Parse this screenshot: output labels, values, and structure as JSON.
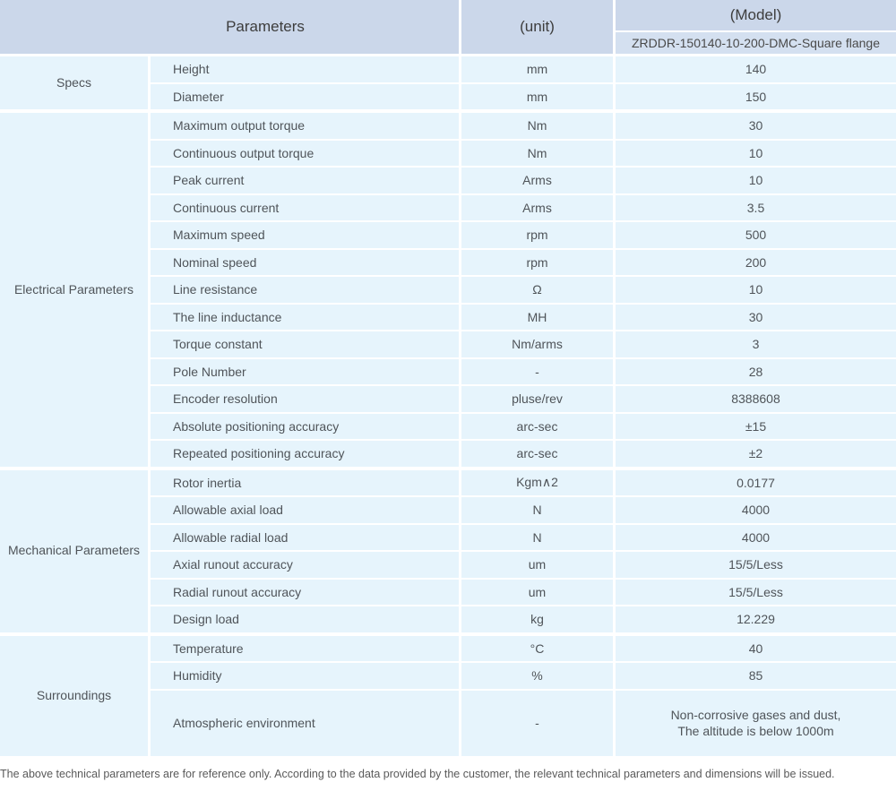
{
  "header": {
    "parameters_label": "Parameters",
    "unit_label": "(unit)",
    "model_label": "(Model)",
    "model_value": "ZRDDR-150140-10-200-DMC-Square flange"
  },
  "colors": {
    "header_bg": "#cbd7ea",
    "subheader_bg": "#d4e0f0",
    "cell_bg": "#e6f4fc",
    "separator": "#ffffff",
    "text": "#4f5459"
  },
  "sections": [
    {
      "category": "Specs",
      "rows": [
        {
          "param": "Height",
          "unit": "mm",
          "value": "140"
        },
        {
          "param": "Diameter",
          "unit": "mm",
          "value": "150"
        }
      ]
    },
    {
      "category": "Electrical Parameters",
      "rows": [
        {
          "param": "Maximum output torque",
          "unit": "Nm",
          "value": "30"
        },
        {
          "param": "Continuous output torque",
          "unit": "Nm",
          "value": "10"
        },
        {
          "param": "Peak current",
          "unit": "Arms",
          "value": "10"
        },
        {
          "param": "Continuous current",
          "unit": "Arms",
          "value": "3.5"
        },
        {
          "param": "Maximum speed",
          "unit": "rpm",
          "value": "500"
        },
        {
          "param": "Nominal speed",
          "unit": "rpm",
          "value": "200"
        },
        {
          "param": "Line resistance",
          "unit": "Ω",
          "value": "10"
        },
        {
          "param": "The line inductance",
          "unit": "MH",
          "value": "30"
        },
        {
          "param": "Torque constant",
          "unit": "Nm/arms",
          "value": "3"
        },
        {
          "param": "Pole Number",
          "unit": "-",
          "value": "28"
        },
        {
          "param": "Encoder resolution",
          "unit": "pluse/rev",
          "value": "8388608"
        },
        {
          "param": "Absolute positioning accuracy",
          "unit": "arc-sec",
          "value": "±15"
        },
        {
          "param": "Repeated positioning accuracy",
          "unit": "arc-sec",
          "value": "±2"
        }
      ]
    },
    {
      "category": "Mechanical Parameters",
      "rows": [
        {
          "param": "Rotor inertia",
          "unit": "Kgm∧2",
          "value": "0.0177"
        },
        {
          "param": "Allowable axial load",
          "unit": "N",
          "value": "4000"
        },
        {
          "param": "Allowable radial load",
          "unit": "N",
          "value": "4000"
        },
        {
          "param": "Axial runout accuracy",
          "unit": "um",
          "value": "15/5/Less"
        },
        {
          "param": "Radial runout accuracy",
          "unit": "um",
          "value": "15/5/Less"
        },
        {
          "param": "Design load",
          "unit": "kg",
          "value": "12.229"
        }
      ]
    },
    {
      "category": "Surroundings",
      "rows": [
        {
          "param": "Temperature",
          "unit": "°C",
          "value": "40"
        },
        {
          "param": "Humidity",
          "unit": "%",
          "value": "85"
        },
        {
          "param": "Atmospheric environment",
          "unit": "-",
          "value": "Non-corrosive gases and dust,\nThe altitude is below 1000m"
        }
      ]
    }
  ],
  "footer": {
    "note": "The above technical parameters are for reference only. According to the data provided by the customer, the relevant technical parameters and dimensions will be issued."
  }
}
